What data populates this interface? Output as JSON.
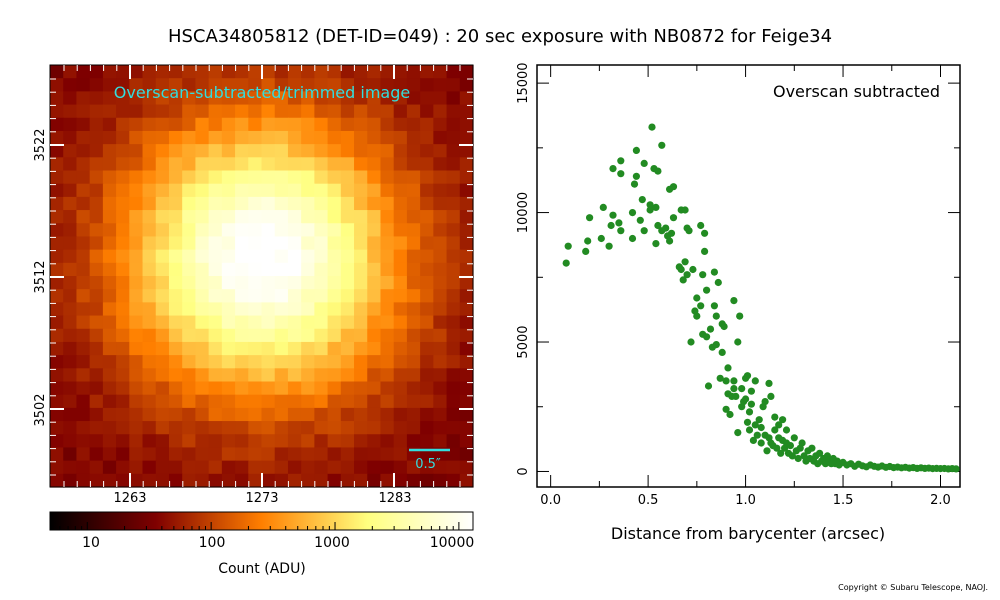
{
  "title": "HSCA34805812 (DET-ID=049) :  20 sec exposure with NB0872 for Feige34",
  "copyright": "Copyright © Subaru Telescope, NAOJ.",
  "image_panel": {
    "label": "Overscan-subtracted/trimmed image",
    "x_ticks": [
      "1263",
      "1273",
      "1283"
    ],
    "y_ticks": [
      "3522",
      "3512",
      "3502"
    ],
    "scalebar_label": "0.5″",
    "colors": {
      "label": "#33dddd",
      "scalebar": "#33dddd"
    },
    "colormap": "afmhot"
  },
  "colorbar": {
    "label": "Count (ADU)",
    "ticks": [
      "10",
      "100",
      "1000",
      "10000"
    ],
    "scale": "log",
    "range": [
      5,
      13000
    ]
  },
  "chart_data": {
    "type": "scatter",
    "annotation": "Overscan subtracted",
    "xlabel": "Distance from barycenter (arcsec)",
    "ylabel": "",
    "xlim": [
      -0.07,
      2.1
    ],
    "ylim": [
      -600,
      15700
    ],
    "x_ticks": [
      "0.0",
      "0.5",
      "1.0",
      "1.5",
      "2.0"
    ],
    "y_ticks": [
      "0",
      "5000",
      "10000",
      "15000"
    ],
    "marker_color": "#228b22",
    "points": [
      [
        0.08,
        8050
      ],
      [
        0.09,
        8700
      ],
      [
        0.18,
        8500
      ],
      [
        0.19,
        8900
      ],
      [
        0.2,
        9800
      ],
      [
        0.26,
        9000
      ],
      [
        0.27,
        10200
      ],
      [
        0.3,
        8700
      ],
      [
        0.31,
        9500
      ],
      [
        0.32,
        9900
      ],
      [
        0.32,
        11700
      ],
      [
        0.35,
        9600
      ],
      [
        0.36,
        9300
      ],
      [
        0.36,
        11500
      ],
      [
        0.36,
        12000
      ],
      [
        0.42,
        9000
      ],
      [
        0.42,
        10000
      ],
      [
        0.43,
        11100
      ],
      [
        0.44,
        11400
      ],
      [
        0.44,
        12400
      ],
      [
        0.46,
        9700
      ],
      [
        0.47,
        10500
      ],
      [
        0.48,
        9300
      ],
      [
        0.48,
        11900
      ],
      [
        0.51,
        10100
      ],
      [
        0.51,
        10300
      ],
      [
        0.52,
        13300
      ],
      [
        0.53,
        11700
      ],
      [
        0.54,
        8800
      ],
      [
        0.54,
        10200
      ],
      [
        0.55,
        9500
      ],
      [
        0.55,
        11600
      ],
      [
        0.57,
        9300
      ],
      [
        0.57,
        12600
      ],
      [
        0.59,
        9400
      ],
      [
        0.6,
        9100
      ],
      [
        0.61,
        8900
      ],
      [
        0.61,
        10900
      ],
      [
        0.62,
        9200
      ],
      [
        0.63,
        9800
      ],
      [
        0.63,
        11000
      ],
      [
        0.66,
        7900
      ],
      [
        0.67,
        10100
      ],
      [
        0.67,
        7800
      ],
      [
        0.68,
        7400
      ],
      [
        0.69,
        8100
      ],
      [
        0.69,
        10100
      ],
      [
        0.7,
        7600
      ],
      [
        0.7,
        9400
      ],
      [
        0.71,
        9300
      ],
      [
        0.72,
        5000
      ],
      [
        0.73,
        7800
      ],
      [
        0.74,
        6200
      ],
      [
        0.75,
        6000
      ],
      [
        0.75,
        6700
      ],
      [
        0.77,
        6400
      ],
      [
        0.77,
        9500
      ],
      [
        0.78,
        5300
      ],
      [
        0.78,
        7600
      ],
      [
        0.79,
        9200
      ],
      [
        0.79,
        8500
      ],
      [
        0.8,
        5200
      ],
      [
        0.8,
        7000
      ],
      [
        0.81,
        3300
      ],
      [
        0.82,
        5500
      ],
      [
        0.83,
        4800
      ],
      [
        0.84,
        7700
      ],
      [
        0.84,
        6400
      ],
      [
        0.85,
        4900
      ],
      [
        0.85,
        6000
      ],
      [
        0.86,
        7300
      ],
      [
        0.87,
        3600
      ],
      [
        0.88,
        5700
      ],
      [
        0.88,
        4600
      ],
      [
        0.89,
        5600
      ],
      [
        0.9,
        2400
      ],
      [
        0.9,
        3500
      ],
      [
        0.91,
        4000
      ],
      [
        0.91,
        3000
      ],
      [
        0.92,
        2200
      ],
      [
        0.93,
        2900
      ],
      [
        0.94,
        3200
      ],
      [
        0.94,
        3500
      ],
      [
        0.94,
        6600
      ],
      [
        0.95,
        2900
      ],
      [
        0.96,
        5000
      ],
      [
        0.96,
        1500
      ],
      [
        0.97,
        6000
      ],
      [
        0.98,
        2500
      ],
      [
        0.98,
        3200
      ],
      [
        0.99,
        2700
      ],
      [
        1.0,
        2800
      ],
      [
        1.0,
        3600
      ],
      [
        1.01,
        1900
      ],
      [
        1.01,
        3700
      ],
      [
        1.02,
        1600
      ],
      [
        1.02,
        2300
      ],
      [
        1.03,
        2600
      ],
      [
        1.03,
        3100
      ],
      [
        1.04,
        1200
      ],
      [
        1.05,
        1800
      ],
      [
        1.05,
        3500
      ],
      [
        1.06,
        1400
      ],
      [
        1.07,
        2000
      ],
      [
        1.08,
        1100
      ],
      [
        1.08,
        1700
      ],
      [
        1.09,
        2500
      ],
      [
        1.1,
        1400
      ],
      [
        1.1,
        2700
      ],
      [
        1.11,
        800
      ],
      [
        1.12,
        1300
      ],
      [
        1.12,
        3400
      ],
      [
        1.13,
        1100
      ],
      [
        1.13,
        2900
      ],
      [
        1.14,
        1000
      ],
      [
        1.15,
        1600
      ],
      [
        1.15,
        2100
      ],
      [
        1.16,
        900
      ],
      [
        1.17,
        1300
      ],
      [
        1.17,
        1800
      ],
      [
        1.18,
        700
      ],
      [
        1.19,
        1200
      ],
      [
        1.19,
        2000
      ],
      [
        1.2,
        900
      ],
      [
        1.21,
        1100
      ],
      [
        1.21,
        1600
      ],
      [
        1.22,
        700
      ],
      [
        1.23,
        1000
      ],
      [
        1.24,
        600
      ],
      [
        1.25,
        1300
      ],
      [
        1.26,
        800
      ],
      [
        1.27,
        500
      ],
      [
        1.28,
        900
      ],
      [
        1.29,
        1100
      ],
      [
        1.3,
        600
      ],
      [
        1.31,
        400
      ],
      [
        1.32,
        800
      ],
      [
        1.33,
        500
      ],
      [
        1.34,
        900
      ],
      [
        1.35,
        400
      ],
      [
        1.36,
        600
      ],
      [
        1.37,
        300
      ],
      [
        1.38,
        700
      ],
      [
        1.39,
        400
      ],
      [
        1.4,
        500
      ],
      [
        1.41,
        300
      ],
      [
        1.42,
        600
      ],
      [
        1.43,
        400
      ],
      [
        1.44,
        300
      ],
      [
        1.45,
        500
      ],
      [
        1.46,
        300
      ],
      [
        1.47,
        400
      ],
      [
        1.48,
        250
      ],
      [
        1.5,
        350
      ],
      [
        1.52,
        250
      ],
      [
        1.54,
        300
      ],
      [
        1.56,
        200
      ],
      [
        1.58,
        280
      ],
      [
        1.6,
        220
      ],
      [
        1.62,
        180
      ],
      [
        1.64,
        250
      ],
      [
        1.66,
        200
      ],
      [
        1.68,
        170
      ],
      [
        1.7,
        210
      ],
      [
        1.72,
        160
      ],
      [
        1.74,
        190
      ],
      [
        1.76,
        150
      ],
      [
        1.78,
        170
      ],
      [
        1.8,
        140
      ],
      [
        1.82,
        160
      ],
      [
        1.84,
        130
      ],
      [
        1.86,
        150
      ],
      [
        1.88,
        120
      ],
      [
        1.9,
        140
      ],
      [
        1.92,
        120
      ],
      [
        1.94,
        130
      ],
      [
        1.96,
        110
      ],
      [
        1.98,
        120
      ],
      [
        2.0,
        110
      ],
      [
        2.02,
        115
      ],
      [
        2.04,
        100
      ],
      [
        2.06,
        110
      ],
      [
        2.08,
        100
      ]
    ]
  }
}
